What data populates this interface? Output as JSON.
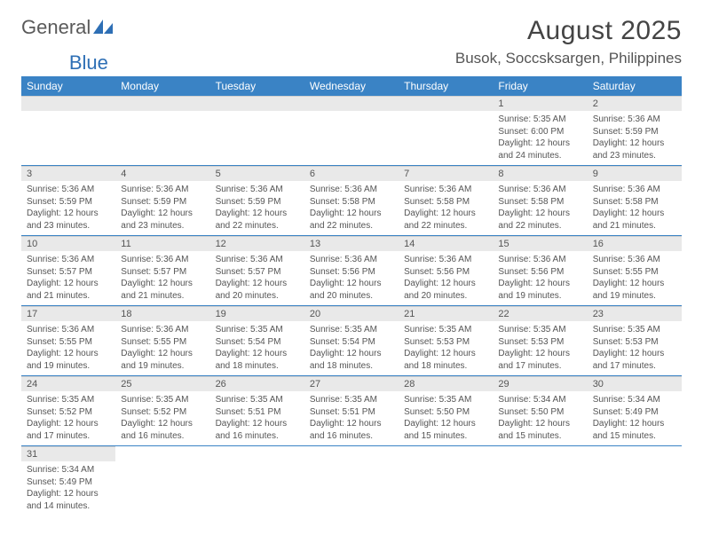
{
  "logo": {
    "textA": "General",
    "textB": "Blue"
  },
  "title": "August 2025",
  "location": "Busok, Soccsksargen, Philippines",
  "colors": {
    "header_bg": "#3a83c5",
    "header_text": "#ffffff",
    "daynum_bg": "#e9e9e9",
    "cell_border": "#3a83c5",
    "body_text": "#555555",
    "logo_gray": "#5a5a5a",
    "logo_blue": "#2e6fb5"
  },
  "weekdays": [
    "Sunday",
    "Monday",
    "Tuesday",
    "Wednesday",
    "Thursday",
    "Friday",
    "Saturday"
  ],
  "weeks": [
    [
      null,
      null,
      null,
      null,
      null,
      {
        "n": "1",
        "sr": "5:35 AM",
        "ss": "6:00 PM",
        "dl": "12 hours and 24 minutes."
      },
      {
        "n": "2",
        "sr": "5:36 AM",
        "ss": "5:59 PM",
        "dl": "12 hours and 23 minutes."
      }
    ],
    [
      {
        "n": "3",
        "sr": "5:36 AM",
        "ss": "5:59 PM",
        "dl": "12 hours and 23 minutes."
      },
      {
        "n": "4",
        "sr": "5:36 AM",
        "ss": "5:59 PM",
        "dl": "12 hours and 23 minutes."
      },
      {
        "n": "5",
        "sr": "5:36 AM",
        "ss": "5:59 PM",
        "dl": "12 hours and 22 minutes."
      },
      {
        "n": "6",
        "sr": "5:36 AM",
        "ss": "5:58 PM",
        "dl": "12 hours and 22 minutes."
      },
      {
        "n": "7",
        "sr": "5:36 AM",
        "ss": "5:58 PM",
        "dl": "12 hours and 22 minutes."
      },
      {
        "n": "8",
        "sr": "5:36 AM",
        "ss": "5:58 PM",
        "dl": "12 hours and 22 minutes."
      },
      {
        "n": "9",
        "sr": "5:36 AM",
        "ss": "5:58 PM",
        "dl": "12 hours and 21 minutes."
      }
    ],
    [
      {
        "n": "10",
        "sr": "5:36 AM",
        "ss": "5:57 PM",
        "dl": "12 hours and 21 minutes."
      },
      {
        "n": "11",
        "sr": "5:36 AM",
        "ss": "5:57 PM",
        "dl": "12 hours and 21 minutes."
      },
      {
        "n": "12",
        "sr": "5:36 AM",
        "ss": "5:57 PM",
        "dl": "12 hours and 20 minutes."
      },
      {
        "n": "13",
        "sr": "5:36 AM",
        "ss": "5:56 PM",
        "dl": "12 hours and 20 minutes."
      },
      {
        "n": "14",
        "sr": "5:36 AM",
        "ss": "5:56 PM",
        "dl": "12 hours and 20 minutes."
      },
      {
        "n": "15",
        "sr": "5:36 AM",
        "ss": "5:56 PM",
        "dl": "12 hours and 19 minutes."
      },
      {
        "n": "16",
        "sr": "5:36 AM",
        "ss": "5:55 PM",
        "dl": "12 hours and 19 minutes."
      }
    ],
    [
      {
        "n": "17",
        "sr": "5:36 AM",
        "ss": "5:55 PM",
        "dl": "12 hours and 19 minutes."
      },
      {
        "n": "18",
        "sr": "5:36 AM",
        "ss": "5:55 PM",
        "dl": "12 hours and 19 minutes."
      },
      {
        "n": "19",
        "sr": "5:35 AM",
        "ss": "5:54 PM",
        "dl": "12 hours and 18 minutes."
      },
      {
        "n": "20",
        "sr": "5:35 AM",
        "ss": "5:54 PM",
        "dl": "12 hours and 18 minutes."
      },
      {
        "n": "21",
        "sr": "5:35 AM",
        "ss": "5:53 PM",
        "dl": "12 hours and 18 minutes."
      },
      {
        "n": "22",
        "sr": "5:35 AM",
        "ss": "5:53 PM",
        "dl": "12 hours and 17 minutes."
      },
      {
        "n": "23",
        "sr": "5:35 AM",
        "ss": "5:53 PM",
        "dl": "12 hours and 17 minutes."
      }
    ],
    [
      {
        "n": "24",
        "sr": "5:35 AM",
        "ss": "5:52 PM",
        "dl": "12 hours and 17 minutes."
      },
      {
        "n": "25",
        "sr": "5:35 AM",
        "ss": "5:52 PM",
        "dl": "12 hours and 16 minutes."
      },
      {
        "n": "26",
        "sr": "5:35 AM",
        "ss": "5:51 PM",
        "dl": "12 hours and 16 minutes."
      },
      {
        "n": "27",
        "sr": "5:35 AM",
        "ss": "5:51 PM",
        "dl": "12 hours and 16 minutes."
      },
      {
        "n": "28",
        "sr": "5:35 AM",
        "ss": "5:50 PM",
        "dl": "12 hours and 15 minutes."
      },
      {
        "n": "29",
        "sr": "5:34 AM",
        "ss": "5:50 PM",
        "dl": "12 hours and 15 minutes."
      },
      {
        "n": "30",
        "sr": "5:34 AM",
        "ss": "5:49 PM",
        "dl": "12 hours and 15 minutes."
      }
    ],
    [
      {
        "n": "31",
        "sr": "5:34 AM",
        "ss": "5:49 PM",
        "dl": "12 hours and 14 minutes."
      },
      null,
      null,
      null,
      null,
      null,
      null
    ]
  ],
  "labels": {
    "sunrise": "Sunrise:",
    "sunset": "Sunset:",
    "daylight": "Daylight:"
  }
}
